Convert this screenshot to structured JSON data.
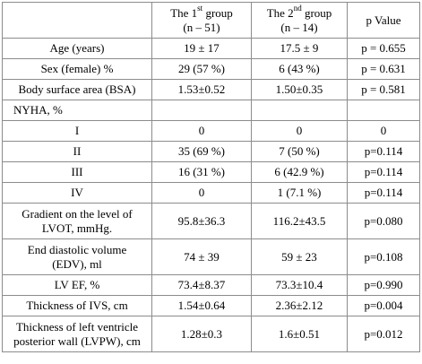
{
  "header": {
    "col0": "",
    "group1_line1_pre": "The 1",
    "group1_sup": "st",
    "group1_line1_post": " group",
    "group1_line2": "(n – 51)",
    "group2_line1_pre": "The 2",
    "group2_sup": "nd",
    "group2_line1_post": " group",
    "group2_line2": "(n – 14)",
    "pvalue": "p Value"
  },
  "rows": [
    {
      "label": "Age (years)",
      "g1": "19 ± 17",
      "g2": "17.5 ± 9",
      "p": "p = 0.655"
    },
    {
      "label": "Sex (female) %",
      "g1": "29 (57 %)",
      "g2": "6 (43 %)",
      "p": "p = 0.631"
    },
    {
      "label": "Body surface area (BSA)",
      "g1": "1.53±0.52",
      "g2": "1.50±0.35",
      "p": "p = 0.581"
    },
    {
      "label": "NYHA, %",
      "g1": "",
      "g2": "",
      "p": ""
    },
    {
      "label": "I",
      "g1": "0",
      "g2": "0",
      "p": "0"
    },
    {
      "label": "II",
      "g1": "35 (69 %)",
      "g2": "7 (50 %)",
      "p": "p=0.114"
    },
    {
      "label": "III",
      "g1": "16 (31 %)",
      "g2": "6 (42.9 %)",
      "p": "p=0.114"
    },
    {
      "label": "IV",
      "g1": "0",
      "g2": "1 (7.1 %)",
      "p": "p=0.114"
    },
    {
      "label_line1": "Gradient on the level of",
      "label_line2": "LVOT, mmHg.",
      "g1": "95.8±36.3",
      "g2": "116.2±43.5",
      "p": "p=0.080"
    },
    {
      "label_line1": "End diastolic volume",
      "label_line2": "(EDV), ml",
      "g1": "74 ± 39",
      "g2": "59 ± 23",
      "p": "p=0.108"
    },
    {
      "label": "LV EF, %",
      "g1": "73.4±8.37",
      "g2": "73.3±10.4",
      "p": "p=0.990"
    },
    {
      "label": "Thickness of IVS, cm",
      "g1": "1.54±0.64",
      "g2": "2.36±2.12",
      "p": "p=0.004"
    },
    {
      "label_line1": "Thickness of left ventricle",
      "label_line2": "posterior wall (LVPW), cm",
      "g1": "1.28±0.3",
      "g2": "1.6±0.51",
      "p": "p=0.012"
    }
  ]
}
